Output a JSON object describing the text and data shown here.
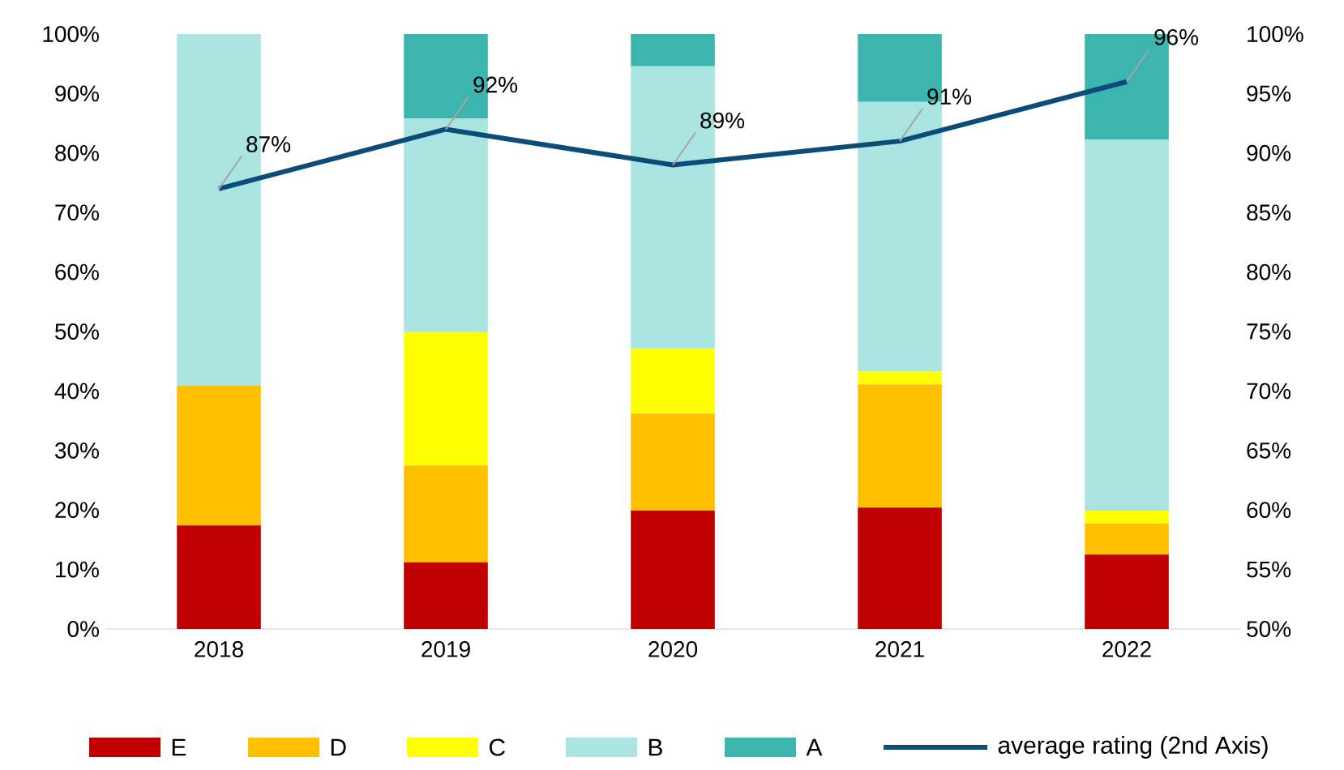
{
  "chart_data": {
    "type": "bar",
    "stacked": true,
    "legend": "bottom",
    "categories": [
      "2018",
      "2019",
      "2020",
      "2021",
      "2022"
    ],
    "series": [
      {
        "name": "E",
        "color": "#c00000",
        "values": [
          17.4,
          11.2,
          19.9,
          20.4,
          12.5
        ]
      },
      {
        "name": "D",
        "color": "#ffc000",
        "values": [
          23.5,
          16.3,
          16.3,
          20.7,
          5.2
        ]
      },
      {
        "name": "C",
        "color": "#ffff00",
        "values": [
          0,
          22.4,
          10.9,
          2.2,
          2.2
        ]
      },
      {
        "name": "B",
        "color": "#a9e4e0",
        "values": [
          59.1,
          35.9,
          47.5,
          45.3,
          62.4
        ]
      },
      {
        "name": "A",
        "color": "#3bb5ad",
        "values": [
          0,
          14.2,
          5.4,
          11.4,
          17.7
        ]
      },
      {
        "name": "average rating (2nd Axis)",
        "type": "line",
        "axis": "y2",
        "color": "#0b4d78",
        "values": [
          87,
          92,
          89,
          91,
          96
        ],
        "value_labels": [
          "87%",
          "92%",
          "89%",
          "91%",
          "96%"
        ]
      }
    ],
    "ylim": [
      0,
      100
    ],
    "yticks": [
      {
        "value": 0,
        "label": "0%"
      },
      {
        "value": 10,
        "label": "10%"
      },
      {
        "value": 20,
        "label": "20%"
      },
      {
        "value": 30,
        "label": "30%"
      },
      {
        "value": 40,
        "label": "40%"
      },
      {
        "value": 50,
        "label": "50%"
      },
      {
        "value": 60,
        "label": "60%"
      },
      {
        "value": 70,
        "label": "70%"
      },
      {
        "value": 80,
        "label": "80%"
      },
      {
        "value": 90,
        "label": "90%"
      },
      {
        "value": 100,
        "label": "100%"
      }
    ],
    "y2lim": [
      50,
      100
    ],
    "y2ticks": [
      {
        "value": 50,
        "label": "50%"
      },
      {
        "value": 55,
        "label": "55%"
      },
      {
        "value": 60,
        "label": "60%"
      },
      {
        "value": 65,
        "label": "65%"
      },
      {
        "value": 70,
        "label": "70%"
      },
      {
        "value": 75,
        "label": "75%"
      },
      {
        "value": 80,
        "label": "80%"
      },
      {
        "value": 85,
        "label": "85%"
      },
      {
        "value": 90,
        "label": "90%"
      },
      {
        "value": 95,
        "label": "95%"
      },
      {
        "value": 100,
        "label": "100%"
      }
    ]
  }
}
